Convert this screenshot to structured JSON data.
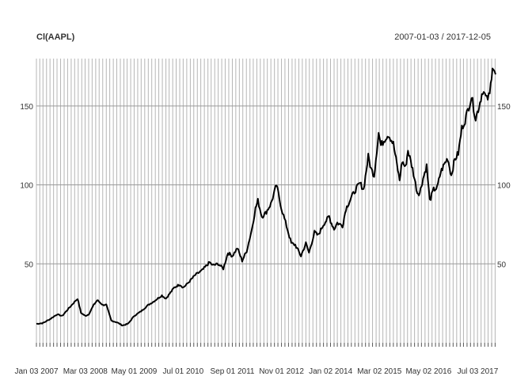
{
  "chart_data": {
    "type": "line",
    "title": "Cl(AAPL)",
    "date_range": "2007-01-03 / 2017-12-05",
    "x_start": "2007-01-03",
    "x_end": "2017-12-05",
    "ylim": [
      0,
      180
    ],
    "y_ticks": [
      50,
      100,
      150
    ],
    "y_tick_labels": [
      "50",
      "100",
      "150"
    ],
    "x_tick_labels": [
      {
        "label": "Jan 03 2007",
        "date": "2007-01-03"
      },
      {
        "label": "Mar 03 2008",
        "date": "2008-03-03"
      },
      {
        "label": "May 01 2009",
        "date": "2009-05-01"
      },
      {
        "label": "Jul 01 2010",
        "date": "2010-07-01"
      },
      {
        "label": "Sep 01 2011",
        "date": "2011-09-01"
      },
      {
        "label": "Nov 01 2012",
        "date": "2012-11-01"
      },
      {
        "label": "Jan 02 2014",
        "date": "2014-01-02"
      },
      {
        "label": "Mar 02 2015",
        "date": "2015-03-02"
      },
      {
        "label": "May 02 2016",
        "date": "2016-05-02"
      },
      {
        "label": "Jul 03 2017",
        "date": "2017-07-03"
      }
    ],
    "grid": true,
    "legend": "none",
    "series": [
      {
        "color": "#000000",
        "points": [
          [
            "2007-01-03",
            12
          ],
          [
            "2007-03-01",
            12.5
          ],
          [
            "2007-05-01",
            15
          ],
          [
            "2007-07-01",
            18
          ],
          [
            "2007-08-15",
            17
          ],
          [
            "2007-10-01",
            21
          ],
          [
            "2007-12-01",
            26
          ],
          [
            "2007-12-27",
            28
          ],
          [
            "2008-01-25",
            19
          ],
          [
            "2008-03-03",
            17
          ],
          [
            "2008-04-01",
            18
          ],
          [
            "2008-05-15",
            24
          ],
          [
            "2008-06-15",
            27
          ],
          [
            "2008-08-01",
            24
          ],
          [
            "2008-09-01",
            24
          ],
          [
            "2008-10-15",
            14
          ],
          [
            "2008-12-01",
            13
          ],
          [
            "2009-01-20",
            11
          ],
          [
            "2009-03-09",
            12
          ],
          [
            "2009-05-01",
            17
          ],
          [
            "2009-07-01",
            20
          ],
          [
            "2009-09-01",
            24
          ],
          [
            "2009-10-15",
            26
          ],
          [
            "2009-12-28",
            30
          ],
          [
            "2010-02-01",
            28
          ],
          [
            "2010-04-15",
            35
          ],
          [
            "2010-06-01",
            37
          ],
          [
            "2010-07-01",
            35
          ],
          [
            "2010-08-01",
            37
          ],
          [
            "2010-10-15",
            43
          ],
          [
            "2010-12-15",
            46
          ],
          [
            "2011-02-15",
            51
          ],
          [
            "2011-03-15",
            49
          ],
          [
            "2011-05-01",
            50
          ],
          [
            "2011-06-15",
            47
          ],
          [
            "2011-07-25",
            57
          ],
          [
            "2011-09-01",
            55
          ],
          [
            "2011-10-15",
            60
          ],
          [
            "2011-11-25",
            52
          ],
          [
            "2012-01-03",
            58
          ],
          [
            "2012-02-15",
            71
          ],
          [
            "2012-03-20",
            85
          ],
          [
            "2012-04-10",
            90
          ],
          [
            "2012-05-15",
            80
          ],
          [
            "2012-06-15",
            82
          ],
          [
            "2012-08-01",
            88
          ],
          [
            "2012-09-19",
            100
          ],
          [
            "2012-11-01",
            85
          ],
          [
            "2012-12-15",
            74
          ],
          [
            "2013-01-25",
            63
          ],
          [
            "2013-03-01",
            62
          ],
          [
            "2013-04-19",
            55
          ],
          [
            "2013-06-01",
            63
          ],
          [
            "2013-06-28",
            57
          ],
          [
            "2013-08-15",
            70
          ],
          [
            "2013-09-15",
            68
          ],
          [
            "2013-11-01",
            75
          ],
          [
            "2013-12-20",
            80
          ],
          [
            "2014-01-02",
            77
          ],
          [
            "2014-02-01",
            72
          ],
          [
            "2014-03-01",
            76
          ],
          [
            "2014-04-15",
            74
          ],
          [
            "2014-05-15",
            85
          ],
          [
            "2014-07-01",
            92
          ],
          [
            "2014-08-15",
            98
          ],
          [
            "2014-09-15",
            101
          ],
          [
            "2014-10-15",
            97
          ],
          [
            "2014-11-25",
            118
          ],
          [
            "2014-12-20",
            110
          ],
          [
            "2015-01-15",
            106
          ],
          [
            "2015-02-23",
            133
          ],
          [
            "2015-03-15",
            125
          ],
          [
            "2015-04-25",
            130
          ],
          [
            "2015-05-20",
            132
          ],
          [
            "2015-07-01",
            126
          ],
          [
            "2015-08-24",
            103
          ],
          [
            "2015-09-15",
            115
          ],
          [
            "2015-10-15",
            111
          ],
          [
            "2015-11-05",
            122
          ],
          [
            "2015-12-15",
            110
          ],
          [
            "2016-01-25",
            95
          ],
          [
            "2016-02-15",
            95
          ],
          [
            "2016-03-15",
            104
          ],
          [
            "2016-04-15",
            112
          ],
          [
            "2016-05-12",
            90
          ],
          [
            "2016-06-15",
            97
          ],
          [
            "2016-07-15",
            98
          ],
          [
            "2016-08-15",
            108
          ],
          [
            "2016-09-15",
            113
          ],
          [
            "2016-10-15",
            117
          ],
          [
            "2016-11-15",
            106
          ],
          [
            "2016-12-15",
            116
          ],
          [
            "2017-01-15",
            120
          ],
          [
            "2017-02-15",
            136
          ],
          [
            "2017-03-15",
            141
          ],
          [
            "2017-05-10",
            156
          ],
          [
            "2017-06-15",
            142
          ],
          [
            "2017-07-15",
            150
          ],
          [
            "2017-08-15",
            160
          ],
          [
            "2017-09-20",
            154
          ],
          [
            "2017-10-15",
            157
          ],
          [
            "2017-11-08",
            176
          ],
          [
            "2017-12-05",
            170
          ]
        ]
      }
    ]
  }
}
